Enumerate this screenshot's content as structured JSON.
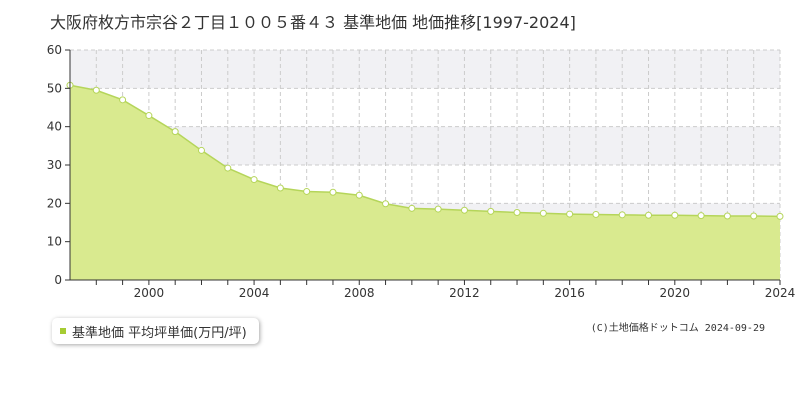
{
  "title": "大阪府枚方市宗谷２丁目１００５番４３ 基準地価 地価推移[1997-2024]",
  "legend_label": "基準地価 平均坪単価(万円/坪)",
  "credit": "(C)土地価格ドットコム 2024-09-29",
  "colors": {
    "area_fill": "#d9ea8f",
    "line": "#b5d55a",
    "marker_fill": "#ffffff",
    "grid": "#cccccc",
    "band": "#f1f1f4",
    "axis": "#333333",
    "legend_swatch": "#a6cc33"
  },
  "chart_data": {
    "type": "area",
    "title": "大阪府枚方市宗谷２丁目１００５番４３ 基準地価 地価推移[1997-2024]",
    "xlim": [
      1997,
      2024
    ],
    "ylim": [
      0,
      60
    ],
    "xticks": [
      2000,
      2004,
      2008,
      2012,
      2016,
      2020,
      2024
    ],
    "yticks": [
      0,
      10,
      20,
      30,
      40,
      50,
      60
    ],
    "grid": true,
    "legend_position": "bottom-left",
    "series": [
      {
        "name": "基準地価 平均坪単価(万円/坪)",
        "x": [
          1997,
          1998,
          1999,
          2000,
          2001,
          2002,
          2003,
          2004,
          2005,
          2006,
          2007,
          2008,
          2009,
          2010,
          2011,
          2012,
          2013,
          2014,
          2015,
          2016,
          2017,
          2018,
          2019,
          2020,
          2021,
          2022,
          2023,
          2024
        ],
        "y": [
          50.8,
          49.5,
          47.0,
          42.9,
          38.7,
          33.8,
          29.2,
          26.2,
          24.0,
          23.1,
          22.9,
          22.1,
          19.9,
          18.7,
          18.5,
          18.2,
          17.9,
          17.6,
          17.4,
          17.2,
          17.1,
          17.0,
          16.9,
          16.9,
          16.8,
          16.7,
          16.7,
          16.6
        ]
      }
    ]
  }
}
